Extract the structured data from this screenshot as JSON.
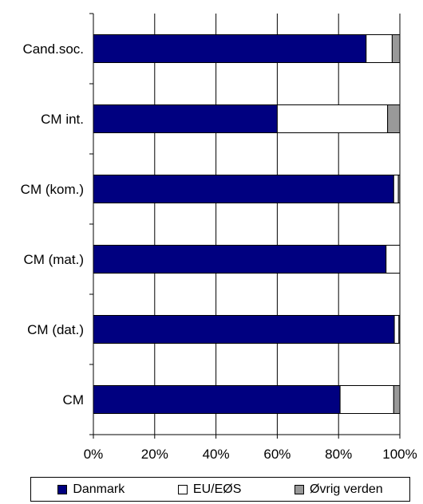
{
  "chart_data": {
    "type": "bar",
    "orientation": "horizontal",
    "stacked": "percent",
    "categories": [
      "Cand.soc.",
      "CM int.",
      "CM (kom.)",
      "CM (mat.)",
      "CM (dat.)",
      "CM"
    ],
    "series": [
      {
        "name": "Danmark",
        "color": "#000080",
        "values": [
          89,
          60,
          98,
          95.5,
          98.2,
          80.5
        ]
      },
      {
        "name": "EU/EØS",
        "color": "#ffffff",
        "values": [
          8.5,
          36,
          1.5,
          4.5,
          1.5,
          17.5
        ]
      },
      {
        "name": "Øvrig verden",
        "color": "#999999",
        "values": [
          2.5,
          4,
          0.5,
          0,
          0.3,
          2
        ]
      }
    ],
    "xlim": [
      0,
      100
    ],
    "xticks": [
      "0%",
      "20%",
      "40%",
      "60%",
      "80%",
      "100%"
    ],
    "grid": "vertical",
    "legend_position": "bottom"
  }
}
